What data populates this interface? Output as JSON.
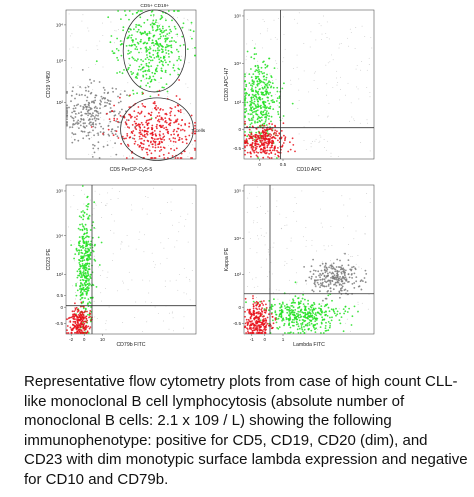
{
  "colors": {
    "t_cells": "#7a7a7a",
    "cd5_cd19_b_cells": "#22e022",
    "cd5_negative_b_cells": "#e8101a",
    "kappa_population": "#7a7a7a",
    "gate_line": "#333333"
  },
  "caption": "Representative flow cytometry plots from case of high count CLL-like monoclonal B cell lymphocytosis (absolute number of monoclonal B cells: 2.1 x 109 / L) showing the following immunophenotype: positive for CD5, CD19, CD20 (dim), and CD23 with dim monotypic surface lambda expression and negative for CD10 and CD79b.",
  "chart_data": [
    {
      "type": "scatter",
      "xlabel": "CD5 PerCP-Cy5-5",
      "ylabel": "CD19 V450",
      "y_ticks": [
        "10⁴",
        "10³",
        "10²"
      ],
      "gates": [
        {
          "label": "CD5+ CD19+",
          "center": [
            1.7,
            1.45
          ],
          "radius_x": 0.6,
          "radius_y": 0.55
        },
        {
          "label": "T cells",
          "center": [
            1.75,
            0.4
          ],
          "radius_x": 0.7,
          "radius_y": 0.42
        }
      ],
      "series": [
        {
          "color_key": "t_cells",
          "center": [
            0.5,
            0.6
          ],
          "spread": [
            0.32,
            0.2
          ],
          "points": 260
        },
        {
          "color_key": "cd5_cd19_b_cells",
          "center": [
            1.68,
            1.48
          ],
          "spread": [
            0.33,
            0.28
          ],
          "points": 380
        },
        {
          "color_key": "cd5_negative_b_cells",
          "center": [
            1.72,
            0.38
          ],
          "spread": [
            0.4,
            0.2
          ],
          "points": 360
        }
      ]
    },
    {
      "type": "scatter",
      "xlabel": "CD10 APC",
      "ylabel": "CD20 APC-H7",
      "y_ticks": [
        "10⁵",
        "10⁴",
        "10³",
        "0",
        "-0.5"
      ],
      "x_ticks": [
        "0",
        "0.5"
      ],
      "quadrant": {
        "x": 0.28,
        "y": 0.21
      },
      "series": [
        {
          "color_key": "cd5_cd19_b_cells",
          "center": [
            0.12,
            0.4
          ],
          "spread": [
            0.07,
            0.13
          ],
          "points": 360
        },
        {
          "color_key": "cd5_negative_b_cells",
          "center": [
            0.14,
            0.12
          ],
          "spread": [
            0.09,
            0.05
          ],
          "points": 300
        }
      ]
    },
    {
      "type": "scatter",
      "xlabel": "CD79b FITC",
      "ylabel": "CD23 PE",
      "y_ticks": [
        "10⁵",
        "10⁴",
        "10³",
        "0.5",
        "0",
        "-0.5"
      ],
      "x_ticks": [
        "-2",
        "0",
        "10"
      ],
      "quadrant": {
        "x": 0.2,
        "y": 0.19
      },
      "series": [
        {
          "color_key": "cd5_cd19_b_cells",
          "center": [
            0.15,
            0.45
          ],
          "spread": [
            0.035,
            0.2
          ],
          "points": 360
        },
        {
          "color_key": "cd5_negative_b_cells",
          "center": [
            0.1,
            0.08
          ],
          "spread": [
            0.04,
            0.05
          ],
          "points": 220
        }
      ]
    },
    {
      "type": "scatter",
      "xlabel": "Lambda FITC",
      "ylabel": "Kappa PE",
      "y_ticks": [
        "10⁵",
        "10⁴",
        "10³",
        "0",
        "-0.5"
      ],
      "x_ticks": [
        "-1",
        "0",
        "1"
      ],
      "quadrant": {
        "x": 0.2,
        "y": 0.27
      },
      "series": [
        {
          "color_key": "kappa_population",
          "center": [
            0.7,
            0.38
          ],
          "spread": [
            0.1,
            0.05
          ],
          "points": 240
        },
        {
          "color_key": "cd5_cd19_b_cells",
          "center": [
            0.45,
            0.13
          ],
          "spread": [
            0.15,
            0.06
          ],
          "points": 380
        },
        {
          "color_key": "cd5_negative_b_cells",
          "center": [
            0.1,
            0.09
          ],
          "spread": [
            0.05,
            0.06
          ],
          "points": 260
        }
      ]
    }
  ]
}
